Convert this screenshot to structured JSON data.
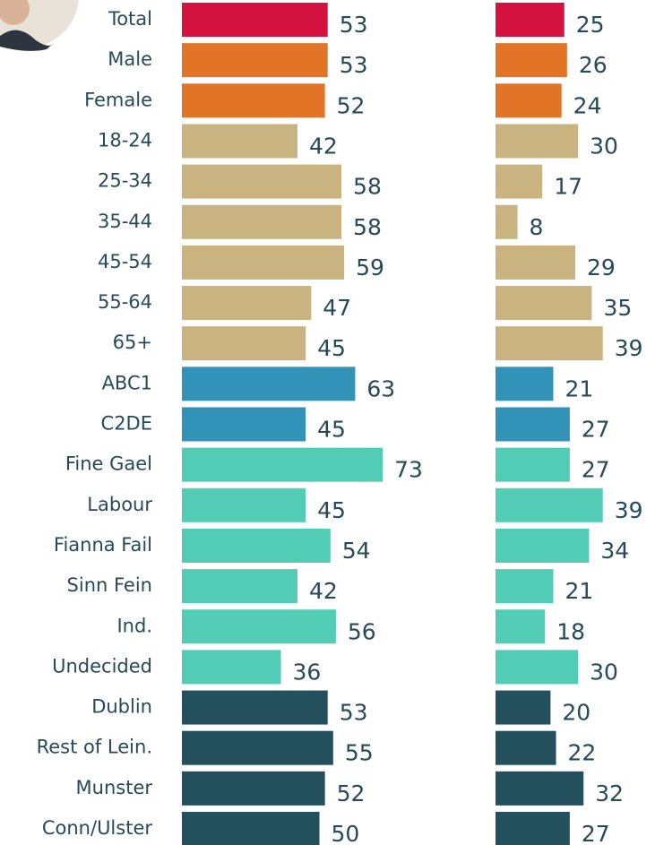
{
  "chart_data": [
    {
      "type": "hbar",
      "categories": [
        "Total",
        "Male",
        "Female",
        "18-24",
        "25-34",
        "35-44",
        "45-54",
        "55-64",
        "65+",
        "ABC1",
        "C2DE",
        "Fine Gael",
        "Labour",
        "Fianna Fail",
        "Sinn Fein",
        "Ind.",
        "Undecided",
        "Dublin",
        "Rest of Lein.",
        "Munster",
        "Conn/Ulster"
      ],
      "values": [
        53,
        53,
        52,
        42,
        58,
        58,
        59,
        47,
        45,
        63,
        45,
        73,
        45,
        54,
        42,
        56,
        36,
        53,
        55,
        52,
        50
      ],
      "colors": [
        "#d3123f",
        "#e27427",
        "#e27427",
        "#c9b481",
        "#c9b481",
        "#c9b481",
        "#c9b481",
        "#c9b481",
        "#c9b481",
        "#3392b8",
        "#3392b8",
        "#52ccb5",
        "#52ccb5",
        "#52ccb5",
        "#52ccb5",
        "#52ccb5",
        "#52ccb5",
        "#244f5d",
        "#244f5d",
        "#244f5d",
        "#244f5d"
      ],
      "xlim": [
        0,
        100
      ]
    },
    {
      "type": "hbar",
      "values": [
        25,
        26,
        24,
        30,
        17,
        8,
        29,
        35,
        39,
        21,
        27,
        27,
        39,
        34,
        21,
        18,
        30,
        20,
        22,
        32,
        27
      ],
      "colors": [
        "#d3123f",
        "#e27427",
        "#e27427",
        "#c9b481",
        "#c9b481",
        "#c9b481",
        "#c9b481",
        "#c9b481",
        "#c9b481",
        "#3392b8",
        "#3392b8",
        "#52ccb5",
        "#52ccb5",
        "#52ccb5",
        "#52ccb5",
        "#52ccb5",
        "#52ccb5",
        "#244f5d",
        "#244f5d",
        "#244f5d",
        "#244f5d"
      ],
      "xlim": [
        0,
        100
      ]
    }
  ]
}
